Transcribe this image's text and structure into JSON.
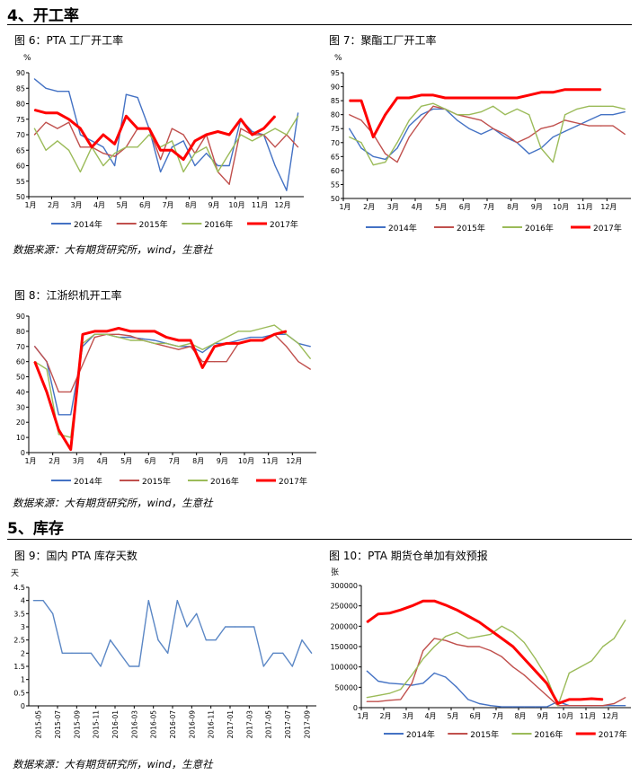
{
  "sections": {
    "s4_title": "4、开工率",
    "s5_title": "5、库存"
  },
  "captions": {
    "fig6": "图 6：PTA 工厂开工率",
    "fig7": "图 7：聚酯工厂开工率",
    "fig8": "图 8：江浙织机开工率",
    "fig9": "图 9：国内 PTA 库存天数",
    "fig10": "图 10：PTA 期货仓单加有效预报"
  },
  "sources": {
    "src1": "数据来源：大有期货研究所，wind，生意社",
    "src2": "数据来源：大有期货研究所，wind，生意社",
    "src3": "数据来源：大有期货研究所，wind，生意社"
  },
  "colors": {
    "2014": "#4472C4",
    "2015": "#C0504D",
    "2016": "#9BBB59",
    "2017": "#FF0000",
    "fig9": "#5B87C5"
  },
  "chart_data": [
    {
      "id": "fig6",
      "type": "line",
      "ylabel": "%",
      "ylim": [
        50,
        90
      ],
      "yticks": [
        50,
        55,
        60,
        65,
        70,
        75,
        80,
        85,
        90
      ],
      "categories": [
        "1月",
        "2月",
        "3月",
        "4月",
        "5月",
        "6月",
        "7月",
        "8月",
        "9月",
        "10月",
        "11月",
        "12月"
      ],
      "x": [
        1,
        1.5,
        2,
        2.5,
        3,
        3.5,
        4,
        4.5,
        5,
        5.5,
        6,
        6.5,
        7,
        7.5,
        8,
        8.5,
        9,
        9.5,
        10,
        10.5,
        11,
        11.5,
        12,
        12.5
      ],
      "series": [
        {
          "name": "2014年",
          "values": [
            88,
            85,
            84,
            84,
            70,
            68,
            66,
            60,
            83,
            82,
            72,
            58,
            66,
            68,
            60,
            64,
            60,
            60,
            75,
            71,
            70,
            60,
            52,
            77
          ]
        },
        {
          "name": "2015年",
          "values": [
            70,
            74,
            72,
            74,
            66,
            66,
            64,
            63,
            66,
            72,
            72,
            62,
            72,
            70,
            64,
            70,
            58,
            54,
            72,
            70,
            70,
            66,
            70,
            66
          ]
        },
        {
          "name": "2016年",
          "values": [
            72,
            65,
            68,
            65,
            58,
            66,
            60,
            64,
            66,
            66,
            70,
            66,
            68,
            58,
            64,
            66,
            58,
            64,
            70,
            68,
            70,
            72,
            70,
            76
          ]
        },
        {
          "name": "2017年",
          "values": [
            78,
            77,
            77,
            75,
            72,
            66,
            70,
            67,
            76,
            72,
            72,
            65,
            65,
            62,
            68,
            70,
            71,
            70,
            75,
            70,
            72,
            76,
            null,
            null
          ]
        }
      ]
    },
    {
      "id": "fig7",
      "type": "line",
      "ylabel": "%",
      "ylim": [
        50,
        95
      ],
      "yticks": [
        50,
        55,
        60,
        65,
        70,
        75,
        80,
        85,
        90,
        95
      ],
      "categories": [
        "1月",
        "2月",
        "3月",
        "4月",
        "5月",
        "6月",
        "7月",
        "8月",
        "9月",
        "10月",
        "11月",
        "12月"
      ],
      "x": [
        1,
        1.5,
        2,
        2.5,
        3,
        3.5,
        4,
        4.5,
        5,
        5.5,
        6,
        6.5,
        7,
        7.5,
        8,
        8.5,
        9,
        9.5,
        10,
        10.5,
        11,
        11.5,
        12,
        12.5
      ],
      "series": [
        {
          "name": "2014年",
          "values": [
            75,
            68,
            65,
            64,
            68,
            76,
            80,
            82,
            82,
            78,
            75,
            73,
            75,
            72,
            70,
            66,
            68,
            72,
            74,
            76,
            78,
            80,
            80,
            81
          ]
        },
        {
          "name": "2015年",
          "values": [
            80,
            78,
            73,
            66,
            63,
            72,
            78,
            83,
            82,
            80,
            79,
            78,
            75,
            73,
            70,
            72,
            75,
            76,
            78,
            77,
            76,
            76,
            76,
            73
          ]
        },
        {
          "name": "2016年",
          "values": [
            72,
            70,
            62,
            63,
            70,
            78,
            83,
            84,
            82,
            80,
            80,
            81,
            83,
            80,
            82,
            80,
            68,
            63,
            80,
            82,
            83,
            83,
            83,
            82
          ]
        },
        {
          "name": "2017年",
          "values": [
            85,
            85,
            72,
            80,
            86,
            86,
            87,
            87,
            86,
            86,
            86,
            86,
            86,
            86,
            86,
            87,
            88,
            88,
            89,
            89,
            89,
            89,
            null,
            null
          ]
        }
      ]
    },
    {
      "id": "fig8",
      "type": "line",
      "ylim": [
        0,
        90
      ],
      "yticks": [
        0,
        10,
        20,
        30,
        40,
        50,
        60,
        70,
        80,
        90
      ],
      "categories": [
        "1月",
        "2月",
        "3月",
        "4月",
        "5月",
        "6月",
        "7月",
        "8月",
        "9月",
        "10月",
        "11月",
        "12月"
      ],
      "x": [
        1,
        1.5,
        2,
        2.5,
        3,
        3.5,
        4,
        4.5,
        5,
        5.5,
        6,
        6.5,
        7,
        7.5,
        8,
        8.5,
        9,
        9.5,
        10,
        10.5,
        11,
        11.5,
        12,
        12.5
      ],
      "series": [
        {
          "name": "2014年",
          "values": [
            70,
            60,
            25,
            25,
            70,
            78,
            78,
            76,
            76,
            75,
            74,
            72,
            70,
            70,
            66,
            72,
            72,
            74,
            76,
            76,
            78,
            78,
            72,
            70
          ]
        },
        {
          "name": "2015年",
          "values": [
            70,
            60,
            40,
            40,
            58,
            76,
            78,
            78,
            77,
            74,
            72,
            70,
            68,
            70,
            60,
            60,
            60,
            72,
            74,
            74,
            78,
            70,
            60,
            55
          ]
        },
        {
          "name": "2016年",
          "values": [
            60,
            55,
            12,
            10,
            72,
            78,
            78,
            76,
            74,
            74,
            72,
            72,
            70,
            72,
            68,
            72,
            76,
            80,
            80,
            82,
            84,
            78,
            72,
            62
          ]
        },
        {
          "name": "2017年",
          "values": [
            60,
            40,
            15,
            2,
            78,
            80,
            80,
            82,
            80,
            80,
            80,
            76,
            74,
            74,
            56,
            70,
            72,
            72,
            74,
            74,
            78,
            80,
            null,
            null
          ]
        }
      ]
    },
    {
      "id": "fig9",
      "type": "line",
      "ylabel": "天",
      "ylim": [
        0,
        4.5
      ],
      "yticks": [
        0,
        0.5,
        1,
        1.5,
        2,
        2.5,
        3,
        3.5,
        4,
        4.5
      ],
      "xticks": [
        "2015-05",
        "2015-07",
        "2015-09",
        "2015-11",
        "2016-01",
        "2016-03",
        "2016-05",
        "2016-07",
        "2016-09",
        "2016-11",
        "2017-01",
        "2017-03",
        "2017-05",
        "2017-07",
        "2017-09"
      ],
      "x": [
        "2015-05",
        "2015-06",
        "2015-07",
        "2015-08",
        "2015-09",
        "2015-10",
        "2015-11",
        "2015-12",
        "2016-01",
        "2016-02",
        "2016-03",
        "2016-04",
        "2016-05",
        "2016-06",
        "2016-07",
        "2016-08",
        "2016-09",
        "2016-10",
        "2016-11",
        "2016-12",
        "2017-01",
        "2017-02",
        "2017-03",
        "2017-04",
        "2017-05",
        "2017-06",
        "2017-07",
        "2017-08",
        "2017-09",
        "2017-10"
      ],
      "series": [
        {
          "name": "",
          "values": [
            4,
            4,
            3.5,
            2,
            2,
            2,
            2,
            1.5,
            2.5,
            2,
            1.5,
            1.5,
            4,
            2.5,
            2,
            4,
            3,
            3.5,
            2.5,
            2.5,
            3,
            3,
            3,
            3,
            1.5,
            2,
            2,
            1.5,
            2.5,
            2
          ]
        }
      ]
    },
    {
      "id": "fig10",
      "type": "line",
      "ylabel": "张",
      "ylim": [
        0,
        300000
      ],
      "yticks": [
        0,
        50000,
        100000,
        150000,
        200000,
        250000,
        300000
      ],
      "yticklabels": [
        "0",
        "50000",
        "100000",
        "150000",
        "200000",
        "250000",
        "300000"
      ],
      "categories": [
        "1月",
        "2月",
        "3月",
        "4月",
        "5月",
        "6月",
        "7月",
        "8月",
        "9月",
        "10月",
        "11月",
        "12月"
      ],
      "x": [
        1,
        1.5,
        2,
        2.5,
        3,
        3.5,
        4,
        4.5,
        5,
        5.5,
        6,
        6.5,
        7,
        7.5,
        8,
        8.5,
        9,
        9.5,
        10,
        10.5,
        11,
        11.5,
        12,
        12.5
      ],
      "series": [
        {
          "name": "2014年",
          "values": [
            90000,
            65000,
            60000,
            58000,
            55000,
            60000,
            85000,
            75000,
            50000,
            20000,
            10000,
            5000,
            2000,
            2000,
            2000,
            2000,
            2000,
            15000,
            5000,
            5000,
            5000,
            5000,
            5000,
            5000
          ]
        },
        {
          "name": "2015年",
          "values": [
            15000,
            15000,
            18000,
            20000,
            60000,
            140000,
            170000,
            165000,
            155000,
            150000,
            150000,
            140000,
            125000,
            100000,
            80000,
            55000,
            30000,
            5000,
            5000,
            5000,
            5000,
            5000,
            10000,
            25000
          ]
        },
        {
          "name": "2016年",
          "values": [
            25000,
            30000,
            35000,
            45000,
            80000,
            120000,
            150000,
            175000,
            185000,
            170000,
            175000,
            180000,
            200000,
            185000,
            160000,
            120000,
            75000,
            5000,
            85000,
            100000,
            115000,
            150000,
            170000,
            215000
          ]
        },
        {
          "name": "2017年",
          "values": [
            210000,
            230000,
            232000,
            240000,
            250000,
            262000,
            262000,
            252000,
            240000,
            225000,
            210000,
            190000,
            170000,
            150000,
            120000,
            90000,
            60000,
            10000,
            20000,
            20000,
            22000,
            20000,
            null,
            null
          ]
        }
      ]
    }
  ]
}
